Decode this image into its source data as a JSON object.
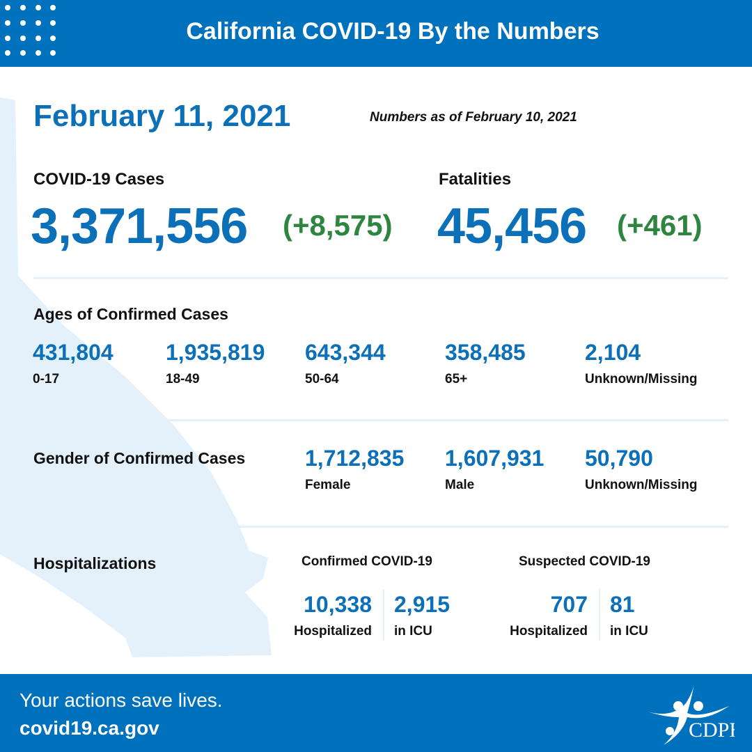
{
  "header": {
    "title": "California COVID-19 By the Numbers"
  },
  "date": "February 11, 2021",
  "as_of": "Numbers as of February 10, 2021",
  "cases": {
    "label": "COVID-19 Cases",
    "value": "3,371,556",
    "change": "(+8,575)"
  },
  "fatalities": {
    "label": "Fatalities",
    "value": "45,456",
    "change": "(+461)"
  },
  "ages": {
    "label": "Ages of Confirmed Cases",
    "items": [
      {
        "value": "431,804",
        "label": "0-17"
      },
      {
        "value": "1,935,819",
        "label": "18-49"
      },
      {
        "value": "643,344",
        "label": "50-64"
      },
      {
        "value": "358,485",
        "label": "65+"
      },
      {
        "value": "2,104",
        "label": "Unknown/Missing"
      }
    ]
  },
  "gender": {
    "label": "Gender of Confirmed Cases",
    "items": [
      {
        "value": "1,712,835",
        "label": "Female"
      },
      {
        "value": "1,607,931",
        "label": "Male"
      },
      {
        "value": "50,790",
        "label": "Unknown/Missing"
      }
    ]
  },
  "hosp": {
    "label": "Hospitalizations",
    "confirmed": {
      "title": "Confirmed COVID-19",
      "hospitalized": "10,338",
      "hospitalized_label": "Hospitalized",
      "icu": "2,915",
      "icu_label": "in ICU"
    },
    "suspected": {
      "title": "Suspected COVID-19",
      "hospitalized": "707",
      "hospitalized_label": "Hospitalized",
      "icu": "81",
      "icu_label": "in ICU"
    }
  },
  "footer": {
    "tagline": "Your actions save lives.",
    "url": "covid19.ca.gov",
    "logo_text": "CDPH"
  },
  "colors": {
    "brand": "#0071BC",
    "number": "#0B70B8",
    "change": "#2E8540",
    "map": "#E4F1FB"
  }
}
